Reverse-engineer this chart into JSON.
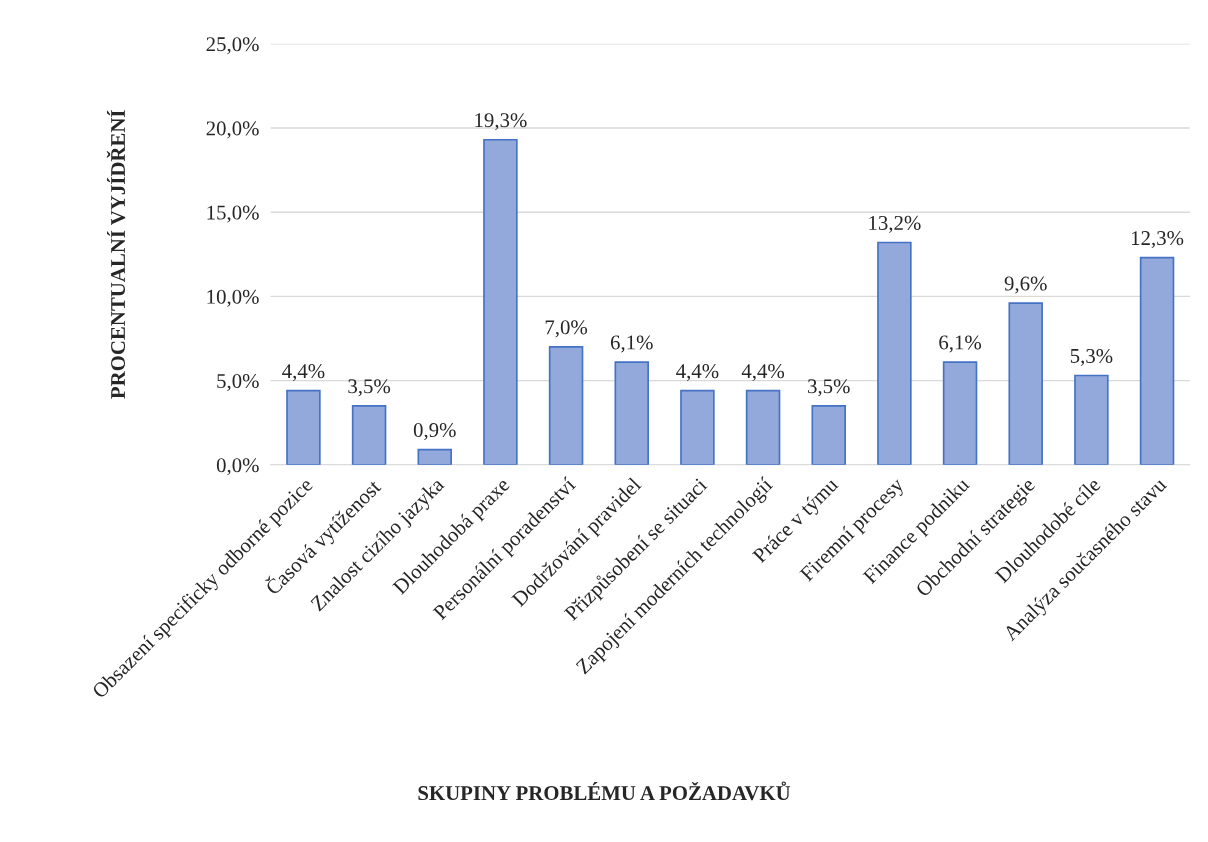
{
  "chart_data": {
    "type": "bar",
    "xlabel": "SKUPINY PROBLÉMU A POŽADAVKŮ",
    "ylabel": "PROCENTUALNÍ VYJÍDŘENÍ",
    "categories": [
      "Obsazení specificky odborné pozice",
      "Časová vytíženost",
      "Znalost cizího jazyka",
      "Dlouhodobá praxe",
      "Personální poradenství",
      "Dodržování pravidel",
      "Přizpůsobení se situaci",
      "Zapojení moderních technologií",
      "Práce v týmu",
      "Firemní procesy",
      "Finance podniku",
      "Obchodní strategie",
      "Dlouhodobé cíle",
      "Analýza současného stavu"
    ],
    "values": [
      4.4,
      3.5,
      0.9,
      19.3,
      7.0,
      6.1,
      4.4,
      4.4,
      3.5,
      13.2,
      6.1,
      9.6,
      5.3,
      12.3
    ],
    "value_labels": [
      "4,4%",
      "3,5%",
      "0,9%",
      "19,3%",
      "7,0%",
      "6,1%",
      "4,4%",
      "4,4%",
      "3,5%",
      "13,2%",
      "6,1%",
      "9,6%",
      "5,3%",
      "12,3%"
    ],
    "color": "#93a9dc",
    "ylim": [
      0,
      25
    ],
    "yticks": [
      {
        "value": 0,
        "label": "0,0%"
      },
      {
        "value": 5,
        "label": "5,0%"
      },
      {
        "value": 10,
        "label": "10,0%"
      },
      {
        "value": 15,
        "label": "15,0%"
      },
      {
        "value": 20,
        "label": "20,0%"
      },
      {
        "value": 25,
        "label": "25,0%"
      }
    ],
    "grid": "y",
    "legend": false
  }
}
